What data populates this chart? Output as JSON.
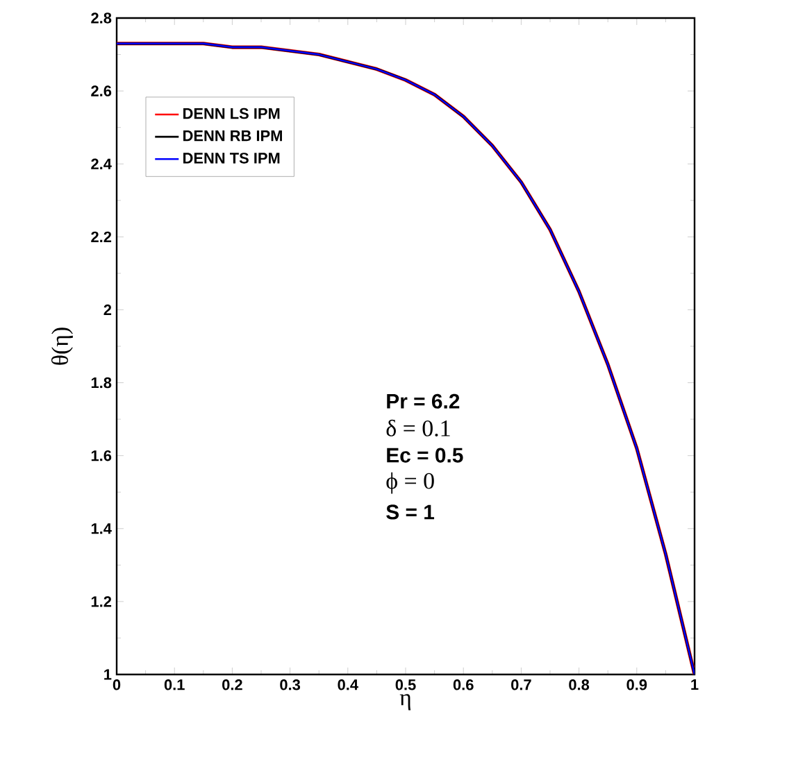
{
  "chart_data": {
    "type": "line",
    "xlabel": "η",
    "ylabel": "θ(η)",
    "x": [
      0,
      0.05,
      0.1,
      0.15,
      0.2,
      0.25,
      0.3,
      0.35,
      0.4,
      0.45,
      0.5,
      0.55,
      0.6,
      0.65,
      0.7,
      0.75,
      0.8,
      0.85,
      0.9,
      0.95,
      1
    ],
    "series": [
      {
        "name": "DENN LS IPM",
        "color": "#ff0000",
        "values": [
          2.73,
          2.73,
          2.73,
          2.73,
          2.72,
          2.72,
          2.71,
          2.7,
          2.68,
          2.66,
          2.63,
          2.59,
          2.53,
          2.45,
          2.35,
          2.22,
          2.05,
          1.85,
          1.62,
          1.33,
          1.0
        ]
      },
      {
        "name": "DENN RB IPM",
        "color": "#000000",
        "values": [
          2.73,
          2.73,
          2.73,
          2.73,
          2.72,
          2.72,
          2.71,
          2.7,
          2.68,
          2.66,
          2.63,
          2.59,
          2.53,
          2.45,
          2.35,
          2.22,
          2.05,
          1.85,
          1.62,
          1.33,
          1.0
        ]
      },
      {
        "name": "DENN TS IPM",
        "color": "#0000ff",
        "values": [
          2.73,
          2.73,
          2.73,
          2.73,
          2.72,
          2.72,
          2.71,
          2.7,
          2.68,
          2.66,
          2.63,
          2.59,
          2.53,
          2.45,
          2.35,
          2.22,
          2.05,
          1.85,
          1.62,
          1.33,
          1.0
        ]
      }
    ],
    "xlim": [
      0,
      1
    ],
    "ylim": [
      1,
      2.8
    ],
    "xticks": [
      0,
      0.1,
      0.2,
      0.3,
      0.4,
      0.5,
      0.6,
      0.7,
      0.8,
      0.9,
      1
    ],
    "yticks": [
      1,
      1.2,
      1.4,
      1.6,
      1.8,
      2,
      2.2,
      2.4,
      2.6,
      2.8
    ],
    "legend": "top left",
    "grid": false,
    "marker": "none",
    "line_style": "solid",
    "annotations": [
      "Pr = 6.2",
      "δ = 0.1",
      "Ec = 0.5",
      "ϕ = 0",
      "S = 1"
    ]
  }
}
